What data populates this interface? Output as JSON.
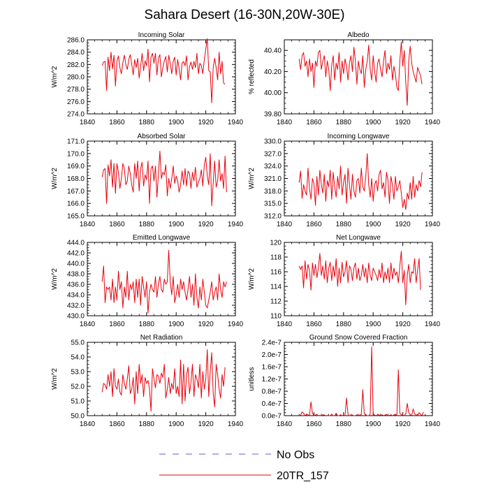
{
  "title": "Sahara Desert (16-30N,20W-30E)",
  "legend": {
    "entries": [
      {
        "label": "No Obs",
        "color": "#5b5bd6",
        "style": "dashed"
      },
      {
        "label": "20TR_157",
        "color": "#e8000b",
        "style": "solid"
      }
    ]
  },
  "series_color": "#e8000b",
  "chart_data": [
    {
      "type": "line",
      "title": "Incoming Solar",
      "ylabel": "W/m^2",
      "xlim": [
        1840,
        1940
      ],
      "xticks": [
        1840,
        1860,
        1880,
        1900,
        1920,
        1940
      ],
      "ylim": [
        274,
        286
      ],
      "yticks": [
        274,
        276,
        278,
        280,
        282,
        284,
        286
      ],
      "ytick_labels": [
        "274.0",
        "276.0",
        "278.0",
        "280.0",
        "282.0",
        "284.0",
        "286.0"
      ],
      "x_start": 1850,
      "values": [
        281.8,
        282.4,
        282.5,
        277.8,
        283.2,
        281.0,
        284.0,
        281.3,
        283.5,
        278.5,
        282.5,
        283.4,
        281.5,
        280.5,
        282.3,
        283.5,
        282.0,
        281.2,
        282.8,
        283.6,
        282.0,
        280.3,
        282.8,
        281.5,
        283.0,
        279.8,
        281.7,
        283.8,
        281.0,
        282.6,
        281.8,
        284.5,
        279.2,
        283.2,
        283.8,
        282.2,
        283.8,
        280.3,
        283.0,
        283.6,
        280.0,
        281.5,
        282.6,
        283.3,
        280.8,
        283.5,
        282.2,
        280.5,
        282.5,
        283.2,
        280.3,
        282.8,
        281.3,
        279.5,
        282.2,
        282.5,
        281.8,
        283.4,
        279.5,
        281.6,
        282.4,
        281.2,
        282.5,
        281.5,
        283.8,
        280.5,
        282.2,
        281.8,
        280.5,
        282.8,
        284.5,
        286.2,
        281.0,
        280.8,
        275.8,
        281.5,
        283.0,
        281.5,
        279.5,
        284.0,
        280.5,
        282.5,
        279.0,
        278.8
      ]
    },
    {
      "type": "line",
      "title": "Albedo",
      "ylabel": "% reflected",
      "xlim": [
        1840,
        1940
      ],
      "xticks": [
        1840,
        1860,
        1880,
        1900,
        1920,
        1940
      ],
      "ylim": [
        39.8,
        40.5
      ],
      "yticks": [
        39.8,
        40.0,
        40.2,
        40.4
      ],
      "ytick_labels": [
        "39.80",
        "40.00",
        "40.20",
        "40.40"
      ],
      "x_start": 1850,
      "values": [
        40.32,
        40.22,
        40.35,
        40.38,
        40.25,
        40.3,
        40.15,
        40.32,
        40.2,
        40.28,
        40.05,
        40.3,
        40.25,
        40.38,
        40.4,
        40.22,
        40.3,
        40.35,
        40.15,
        40.3,
        40.22,
        40.02,
        40.26,
        40.35,
        40.12,
        40.28,
        40.22,
        40.38,
        40.1,
        40.3,
        40.18,
        40.32,
        40.25,
        40.12,
        40.28,
        40.35,
        40.2,
        40.43,
        40.3,
        40.08,
        40.3,
        40.22,
        40.18,
        40.35,
        40.05,
        40.22,
        40.3,
        40.45,
        40.22,
        40.12,
        40.35,
        40.2,
        40.1,
        40.28,
        40.32,
        40.22,
        40.15,
        40.3,
        40.4,
        40.18,
        40.28,
        40.22,
        40.35,
        40.12,
        40.25,
        40.18,
        40.05,
        40.02,
        40.3,
        40.48,
        40.25,
        40.4,
        40.1,
        39.88,
        40.3,
        40.44,
        40.28,
        40.2,
        40.15,
        40.1,
        40.24,
        40.2,
        40.16,
        40.08
      ]
    },
    {
      "type": "line",
      "title": "Absorbed Solar",
      "ylabel": "W/m^2",
      "xlim": [
        1840,
        1940
      ],
      "xticks": [
        1840,
        1860,
        1880,
        1900,
        1920,
        1940
      ],
      "ylim": [
        165,
        171
      ],
      "yticks": [
        165,
        166,
        167,
        168,
        169,
        170,
        171
      ],
      "ytick_labels": [
        "165.0",
        "166.0",
        "167.0",
        "168.0",
        "169.0",
        "170.0",
        "171.0"
      ],
      "x_start": 1850,
      "values": [
        168.1,
        168.7,
        168.8,
        166.0,
        169.1,
        168.2,
        169.5,
        167.3,
        169.2,
        166.8,
        169.2,
        168.5,
        167.2,
        168.0,
        169.2,
        168.8,
        167.5,
        167.8,
        169.0,
        168.4,
        167.5,
        166.9,
        169.2,
        168.0,
        169.4,
        167.0,
        168.8,
        169.3,
        167.4,
        168.3,
        167.9,
        169.4,
        166.0,
        168.8,
        169.0,
        167.8,
        169.0,
        166.5,
        168.3,
        170.2,
        168.0,
        168.5,
        168.3,
        169.1,
        166.6,
        168.0,
        167.2,
        168.0,
        169.0,
        167.6,
        168.2,
        167.8,
        166.9,
        167.5,
        168.6,
        167.5,
        168.8,
        167.4,
        168.6,
        168.4,
        167.2,
        168.5,
        167.8,
        168.9,
        167.3,
        167.7,
        168.0,
        168.7,
        167.4,
        169.1,
        169.7,
        168.2,
        167.5,
        170.0,
        165.8,
        167.6,
        169.4,
        167.3,
        167.8,
        169.5,
        167.8,
        168.4,
        167.2,
        169.8,
        166.9
      ]
    },
    {
      "type": "line",
      "title": "Incoming Longwave",
      "ylabel": "W/m^2",
      "xlim": [
        1840,
        1940
      ],
      "xticks": [
        1840,
        1860,
        1880,
        1900,
        1920,
        1940
      ],
      "ylim": [
        312,
        330
      ],
      "yticks": [
        312,
        315,
        318,
        321,
        324,
        327,
        330
      ],
      "ytick_labels": [
        "312.0",
        "315.0",
        "318.0",
        "321.0",
        "324.0",
        "327.0",
        "330.0"
      ],
      "x_start": 1850,
      "values": [
        320.0,
        322.8,
        316.2,
        319.5,
        318.0,
        317.0,
        323.5,
        318.5,
        316.0,
        321.0,
        319.8,
        314.5,
        321.5,
        317.0,
        323.0,
        319.5,
        317.5,
        322.0,
        315.5,
        320.5,
        319.0,
        323.0,
        316.0,
        322.5,
        319.0,
        316.5,
        321.5,
        318.5,
        324.0,
        317.0,
        320.0,
        322.0,
        315.0,
        323.5,
        319.5,
        316.0,
        322.0,
        318.0,
        316.5,
        320.5,
        321.0,
        317.5,
        323.5,
        319.0,
        318.0,
        321.5,
        327.0,
        319.5,
        316.5,
        321.0,
        315.5,
        319.5,
        320.5,
        318.0,
        322.0,
        323.0,
        318.5,
        320.0,
        316.5,
        322.5,
        320.5,
        315.0,
        321.5,
        319.5,
        316.0,
        321.5,
        318.0,
        319.0,
        320.5,
        317.5,
        314.0,
        316.0,
        313.5,
        317.5,
        316.0,
        320.0,
        316.0,
        321.5,
        316.5,
        319.5,
        318.0,
        320.5,
        319.0,
        322.5
      ]
    },
    {
      "type": "line",
      "title": "Emitted Longwave",
      "ylabel": "W/m^2",
      "xlim": [
        1840,
        1940
      ],
      "xticks": [
        1840,
        1860,
        1880,
        1900,
        1920,
        1940
      ],
      "ylim": [
        430,
        444
      ],
      "yticks": [
        430,
        432,
        434,
        436,
        438,
        440,
        442,
        444
      ],
      "ytick_labels": [
        "430.0",
        "432.0",
        "434.0",
        "436.0",
        "438.0",
        "440.0",
        "442.0",
        "444.0"
      ],
      "x_start": 1850,
      "values": [
        436.5,
        439.5,
        432.5,
        435.5,
        435.0,
        435.5,
        433.0,
        437.0,
        432.5,
        435.5,
        433.0,
        438.5,
        435.0,
        436.5,
        431.5,
        435.5,
        433.5,
        438.5,
        433.0,
        436.0,
        435.0,
        436.5,
        432.5,
        437.0,
        433.5,
        437.0,
        432.0,
        437.5,
        435.5,
        433.5,
        436.5,
        430.5,
        434.5,
        436.0,
        435.0,
        434.5,
        437.5,
        433.5,
        436.0,
        437.5,
        435.0,
        434.5,
        437.0,
        436.0,
        436.5,
        442.5,
        436.5,
        434.0,
        437.5,
        432.5,
        434.0,
        436.0,
        433.5,
        437.0,
        435.0,
        436.5,
        434.5,
        433.0,
        435.0,
        437.5,
        433.5,
        436.0,
        432.0,
        438.0,
        433.5,
        431.5,
        435.5,
        433.0,
        437.0,
        434.5,
        432.0,
        431.5,
        433.0,
        434.5,
        436.5,
        433.0,
        434.5,
        435.5,
        433.0,
        438.0,
        435.0,
        433.5,
        436.5,
        435.5,
        436.5
      ]
    },
    {
      "type": "line",
      "title": "Net Longwave",
      "ylabel": "W/m^2",
      "xlim": [
        1840,
        1940
      ],
      "xticks": [
        1840,
        1860,
        1880,
        1900,
        1920,
        1940
      ],
      "ylim": [
        110,
        120
      ],
      "yticks": [
        110,
        112,
        114,
        116,
        118,
        120
      ],
      "ytick_labels": [
        "110",
        "112",
        "114",
        "116",
        "118",
        "120"
      ],
      "x_start": 1850,
      "values": [
        116.8,
        116.3,
        116.8,
        113.8,
        117.5,
        115.0,
        117.0,
        116.2,
        113.5,
        117.2,
        115.5,
        117.0,
        115.2,
        116.5,
        118.5,
        115.5,
        116.8,
        115.0,
        117.5,
        114.5,
        116.5,
        117.3,
        114.8,
        116.8,
        115.3,
        117.8,
        114.0,
        116.5,
        114.5,
        117.3,
        115.3,
        116.0,
        117.5,
        114.5,
        116.8,
        116.3,
        114.8,
        116.5,
        117.2,
        115.0,
        116.5,
        114.8,
        115.5,
        117.0,
        115.3,
        116.5,
        114.5,
        117.2,
        115.5,
        114.8,
        116.5,
        116.0,
        115.5,
        114.8,
        116.3,
        115.2,
        117.2,
        114.5,
        116.0,
        115.0,
        116.5,
        114.5,
        117.2,
        115.0,
        116.5,
        115.5,
        116.0,
        114.5,
        116.8,
        118.8,
        114.5,
        116.2,
        111.5,
        115.5,
        117.0,
        114.5,
        116.0,
        115.8,
        117.8,
        114.5,
        116.2,
        117.8,
        113.5
      ]
    },
    {
      "type": "line",
      "title": "Net Radiation",
      "ylabel": "W/m^2",
      "xlim": [
        1840,
        1940
      ],
      "xticks": [
        1840,
        1860,
        1880,
        1900,
        1920,
        1940
      ],
      "ylim": [
        50,
        55
      ],
      "yticks": [
        50,
        51,
        52,
        53,
        54,
        55
      ],
      "ytick_labels": [
        "50.0",
        "51.0",
        "52.0",
        "53.0",
        "54.0",
        "55.0"
      ],
      "x_start": 1850,
      "values": [
        51.6,
        52.2,
        52.1,
        51.8,
        52.8,
        52.0,
        53.0,
        51.3,
        53.2,
        52.0,
        51.8,
        52.5,
        51.6,
        51.4,
        52.8,
        52.2,
        51.8,
        52.5,
        53.4,
        51.5,
        51.8,
        52.6,
        50.8,
        53.0,
        51.5,
        53.5,
        52.2,
        52.8,
        51.3,
        52.6,
        52.2,
        52.4,
        51.8,
        50.3,
        53.2,
        52.5,
        51.9,
        52.8,
        52.7,
        52.2,
        52.9,
        52.6,
        53.5,
        51.2,
        51.8,
        52.6,
        51.5,
        52.2,
        51.8,
        53.2,
        51.5,
        52.0,
        51.3,
        53.8,
        50.8,
        53.5,
        51.0,
        52.8,
        53.3,
        51.5,
        52.3,
        53.5,
        51.3,
        52.8,
        52.5,
        51.9,
        53.5,
        51.2,
        53.0,
        51.8,
        52.5,
        54.5,
        51.3,
        53.0,
        54.3,
        51.5,
        50.6,
        53.5,
        52.8,
        51.8,
        51.2,
        52.8,
        52.0,
        53.3
      ]
    },
    {
      "type": "line",
      "title": "Ground Snow Covered Fraction",
      "ylabel": "unitless",
      "xlim": [
        1840,
        1940
      ],
      "xticks": [
        1840,
        1860,
        1880,
        1900,
        1920,
        1940
      ],
      "ylim": [
        0,
        2.4e-07
      ],
      "yticks": [
        0,
        4e-08,
        8e-08,
        1.2e-07,
        1.6e-07,
        2e-07,
        2.4e-07
      ],
      "ytick_labels": [
        "0.0e-7",
        "0.4e-7",
        "0.8e-7",
        "1.2e-7",
        "1.6e-7",
        "2.0e-7",
        "2.4e-7"
      ],
      "x_start": 1850,
      "values": [
        0,
        2e-09,
        1.2e-08,
        8e-09,
        0,
        5e-09,
        3e-09,
        0,
        4.5e-08,
        8e-09,
        0,
        2e-09,
        4e-09,
        0,
        1e-09,
        0,
        3e-09,
        2e-09,
        0,
        1e-09,
        0,
        0,
        5e-09,
        0,
        0,
        8e-09,
        0,
        0,
        3e-09,
        0,
        2e-09,
        0,
        5.8e-08,
        5e-09,
        0,
        1e-09,
        2e-09,
        0,
        0,
        3e-09,
        0,
        2e-09,
        4e-09,
        8.5e-08,
        6e-09,
        3e-09,
        0,
        0,
        5e-09,
        2.25e-07,
        5e-09,
        2e-09,
        0,
        4e-09,
        2e-09,
        1e-09,
        3e-09,
        0,
        2e-09,
        4e-09,
        0,
        1e-09,
        3e-09,
        0,
        2e-09,
        5e-09,
        0,
        1.5e-07,
        8e-09,
        3e-09,
        2e-09,
        0,
        6e-09,
        4e-08,
        1e-08,
        3e-09,
        0,
        2.2e-08,
        5e-09,
        3e-09,
        0,
        1e-08,
        4e-09,
        1e-09,
        1.2e-08
      ]
    }
  ]
}
